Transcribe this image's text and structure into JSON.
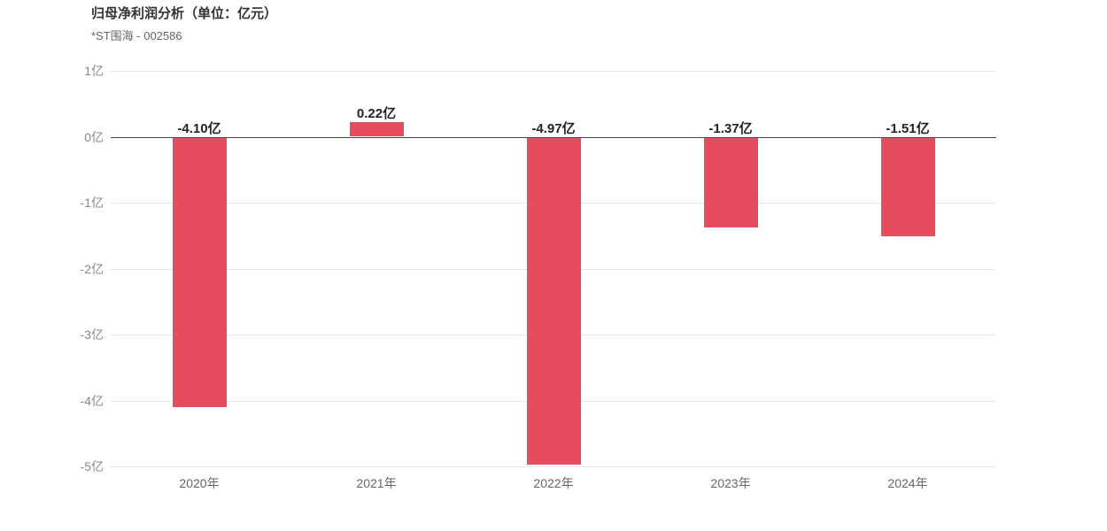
{
  "header": {
    "title": "归母净利润分析（单位：亿元）",
    "subtitle": "*ST围海 - 002586"
  },
  "chart_data": {
    "type": "bar",
    "title": "归母净利润分析（单位：亿元）",
    "subtitle": "*ST围海 - 002586",
    "categories": [
      "2020年",
      "2021年",
      "2022年",
      "2023年",
      "2024年"
    ],
    "values": [
      -4.1,
      0.22,
      -4.97,
      -1.37,
      -1.51
    ],
    "value_labels": [
      "-4.10亿",
      "0.22亿",
      "-4.97亿",
      "-1.37亿",
      "-1.51亿"
    ],
    "xlabel": "",
    "ylabel": "",
    "ylim": [
      -5,
      1
    ],
    "yticks": [
      1,
      0,
      -1,
      -2,
      -3,
      -4,
      -5
    ],
    "ytick_labels": [
      "1亿",
      "0亿",
      "-1亿",
      "-2亿",
      "-3亿",
      "-4亿",
      "-5亿"
    ],
    "grid": true,
    "legend_position": "none",
    "bar_color": "#e54d5f",
    "zero_line_color": "#444444",
    "gridline_color": "#e8e8e8"
  }
}
